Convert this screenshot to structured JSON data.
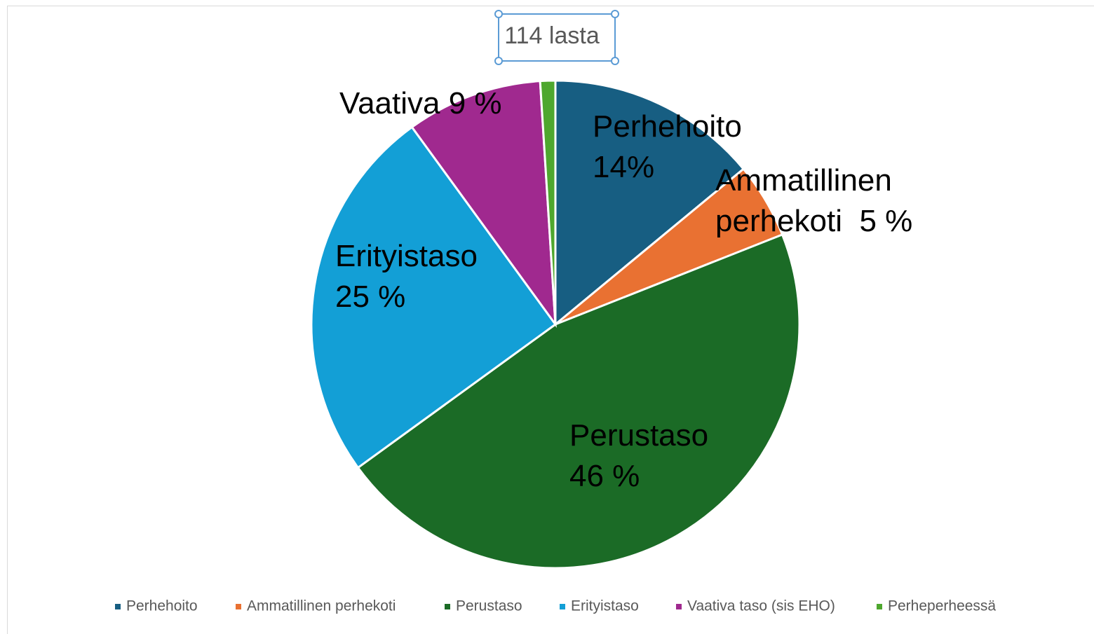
{
  "chart_data": {
    "type": "pie",
    "title": "114 lasta",
    "categories": [
      "Perhehoito",
      "Ammatillinen perhekoti",
      "Perustaso",
      "Erityistaso",
      "Vaativa taso (sis EHO)",
      "Perheperheessä"
    ],
    "values": [
      14,
      5,
      46,
      25,
      9,
      1
    ],
    "value_labels": [
      [
        "Perhehoito",
        "14%"
      ],
      [
        "Ammatillinen",
        "perhekoti  5 %"
      ],
      [
        "Perustaso",
        "46 %"
      ],
      [
        "Erityistaso",
        "25 %"
      ],
      [
        "Vaativa 9 %"
      ],
      null
    ],
    "colors": [
      "#175e82",
      "#e97132",
      "#1b6b26",
      "#139fd6",
      "#a0298f",
      "#4ea72e"
    ],
    "legend": "bottom"
  }
}
